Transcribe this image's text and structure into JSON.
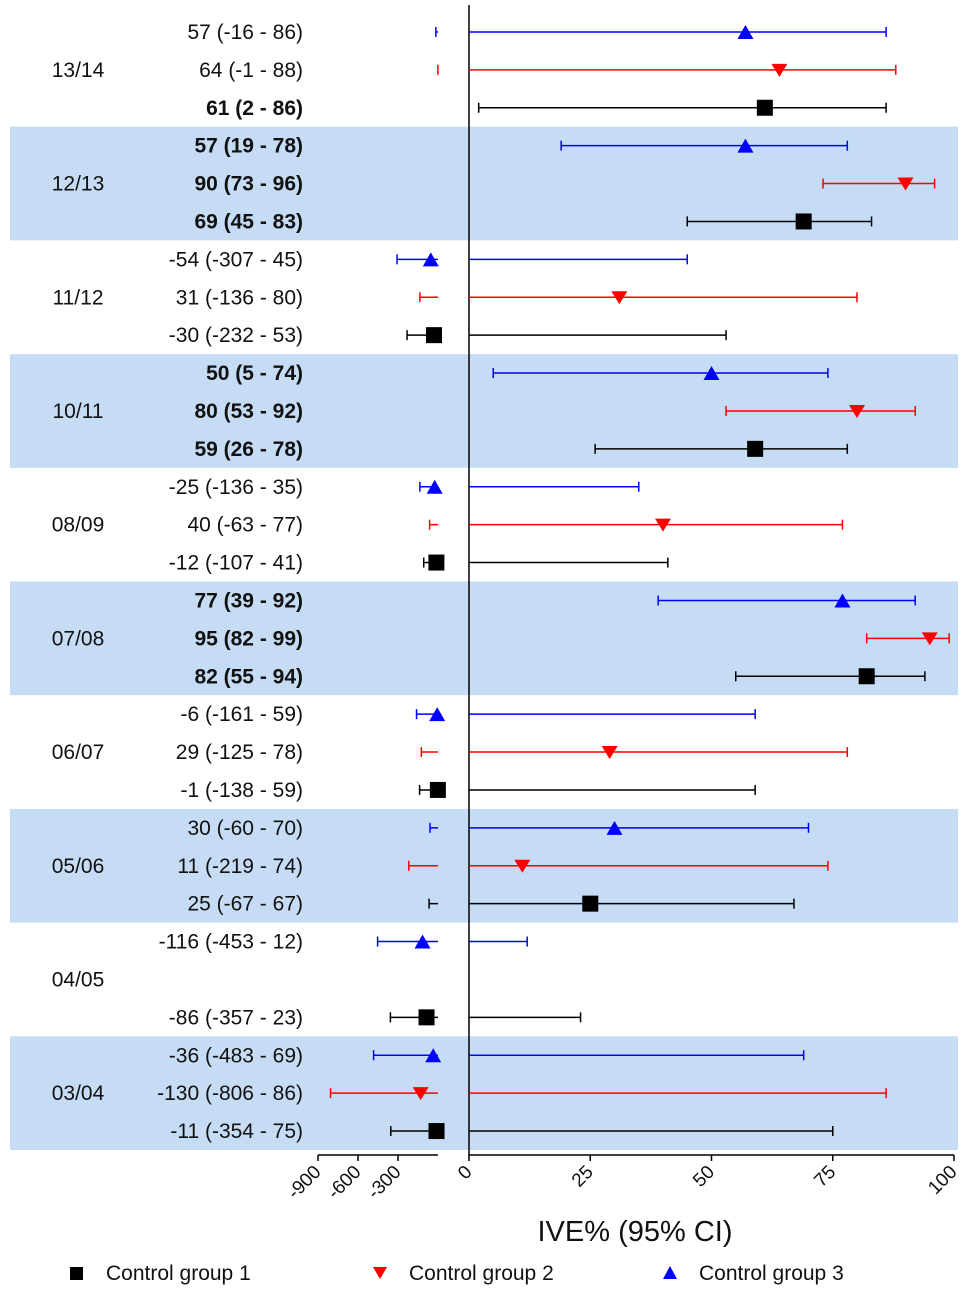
{
  "chart_data": {
    "type": "forest",
    "xlabel": "IVE% (95% CI)",
    "x_ticks_negative": [
      -900,
      -600,
      -300
    ],
    "x_ticks_positive": [
      0,
      25,
      50,
      75,
      100
    ],
    "x_ranges": {
      "negative_axis": [
        -900,
        0
      ],
      "positive_axis": [
        0,
        100
      ]
    },
    "colors": {
      "band": "#c6dcf5",
      "group1": "#000000",
      "group2": "#ff0000",
      "group3": "#0000ff"
    },
    "legend": [
      {
        "key": "group1",
        "label": "Control group 1",
        "marker": "square"
      },
      {
        "key": "group2",
        "label": "Control group 2",
        "marker": "triangle-down"
      },
      {
        "key": "group3",
        "label": "Control group 3",
        "marker": "triangle-up"
      }
    ],
    "seasons": [
      {
        "label": "13/14",
        "shaded": false,
        "rows": [
          {
            "group": "group3",
            "estimate": 57,
            "lower": -16,
            "upper": 86,
            "label": "57 (-16 - 86)",
            "bold": false
          },
          {
            "group": "group2",
            "estimate": 64,
            "lower": -1,
            "upper": 88,
            "label": "64 (-1 - 88)",
            "bold": false
          },
          {
            "group": "group1",
            "estimate": 61,
            "lower": 2,
            "upper": 86,
            "label": "61 (2 - 86)",
            "bold": true
          }
        ]
      },
      {
        "label": "12/13",
        "shaded": true,
        "rows": [
          {
            "group": "group3",
            "estimate": 57,
            "lower": 19,
            "upper": 78,
            "label": "57 (19 - 78)",
            "bold": true
          },
          {
            "group": "group2",
            "estimate": 90,
            "lower": 73,
            "upper": 96,
            "label": "90 (73 - 96)",
            "bold": true
          },
          {
            "group": "group1",
            "estimate": 69,
            "lower": 45,
            "upper": 83,
            "label": "69 (45 - 83)",
            "bold": true
          }
        ]
      },
      {
        "label": "11/12",
        "shaded": false,
        "rows": [
          {
            "group": "group3",
            "estimate": -54,
            "lower": -307,
            "upper": 45,
            "label": "-54 (-307 - 45)",
            "bold": false
          },
          {
            "group": "group2",
            "estimate": 31,
            "lower": -136,
            "upper": 80,
            "label": "31 (-136 - 80)",
            "bold": false
          },
          {
            "group": "group1",
            "estimate": -30,
            "lower": -232,
            "upper": 53,
            "label": "-30 (-232 - 53)",
            "bold": false
          }
        ]
      },
      {
        "label": "10/11",
        "shaded": true,
        "rows": [
          {
            "group": "group3",
            "estimate": 50,
            "lower": 5,
            "upper": 74,
            "label": "50 (5 - 74)",
            "bold": true
          },
          {
            "group": "group2",
            "estimate": 80,
            "lower": 53,
            "upper": 92,
            "label": "80 (53 - 92)",
            "bold": true
          },
          {
            "group": "group1",
            "estimate": 59,
            "lower": 26,
            "upper": 78,
            "label": "59 (26 - 78)",
            "bold": true
          }
        ]
      },
      {
        "label": "08/09",
        "shaded": false,
        "rows": [
          {
            "group": "group3",
            "estimate": -25,
            "lower": -136,
            "upper": 35,
            "label": "-25 (-136 - 35)",
            "bold": false
          },
          {
            "group": "group2",
            "estimate": 40,
            "lower": -63,
            "upper": 77,
            "label": "40 (-63 - 77)",
            "bold": false
          },
          {
            "group": "group1",
            "estimate": -12,
            "lower": -107,
            "upper": 41,
            "label": "-12 (-107 - 41)",
            "bold": false
          }
        ]
      },
      {
        "label": "07/08",
        "shaded": true,
        "rows": [
          {
            "group": "group3",
            "estimate": 77,
            "lower": 39,
            "upper": 92,
            "label": "77 (39 - 92)",
            "bold": true
          },
          {
            "group": "group2",
            "estimate": 95,
            "lower": 82,
            "upper": 99,
            "label": "95 (82 - 99)",
            "bold": true
          },
          {
            "group": "group1",
            "estimate": 82,
            "lower": 55,
            "upper": 94,
            "label": "82 (55 - 94)",
            "bold": true
          }
        ]
      },
      {
        "label": "06/07",
        "shaded": false,
        "rows": [
          {
            "group": "group3",
            "estimate": -6,
            "lower": -161,
            "upper": 59,
            "label": "-6 (-161 - 59)",
            "bold": false
          },
          {
            "group": "group2",
            "estimate": 29,
            "lower": -125,
            "upper": 78,
            "label": "29 (-125 - 78)",
            "bold": false
          },
          {
            "group": "group1",
            "estimate": -1,
            "lower": -138,
            "upper": 59,
            "label": "-1 (-138 - 59)",
            "bold": false
          }
        ]
      },
      {
        "label": "05/06",
        "shaded": true,
        "rows": [
          {
            "group": "group3",
            "estimate": 30,
            "lower": -60,
            "upper": 70,
            "label": "30 (-60 - 70)",
            "bold": false
          },
          {
            "group": "group2",
            "estimate": 11,
            "lower": -219,
            "upper": 74,
            "label": "11 (-219 - 74)",
            "bold": false
          },
          {
            "group": "group1",
            "estimate": 25,
            "lower": -67,
            "upper": 67,
            "label": "25 (-67 - 67)",
            "bold": false
          }
        ]
      },
      {
        "label": "04/05",
        "shaded": false,
        "rows": [
          {
            "group": "group3",
            "estimate": -116,
            "lower": -453,
            "upper": 12,
            "label": "-116 (-453 - 12)",
            "bold": false
          },
          null,
          {
            "group": "group1",
            "estimate": -86,
            "lower": -357,
            "upper": 23,
            "label": "-86 (-357 - 23)",
            "bold": false
          }
        ]
      },
      {
        "label": "03/04",
        "shaded": true,
        "rows": [
          {
            "group": "group3",
            "estimate": -36,
            "lower": -483,
            "upper": 69,
            "label": "-36 (-483 - 69)",
            "bold": false
          },
          {
            "group": "group2",
            "estimate": -130,
            "lower": -806,
            "upper": 86,
            "label": "-130 (-806 - 86)",
            "bold": false
          },
          {
            "group": "group1",
            "estimate": -11,
            "lower": -354,
            "upper": 75,
            "label": "-11 (-354 - 75)",
            "bold": false
          }
        ]
      }
    ]
  }
}
